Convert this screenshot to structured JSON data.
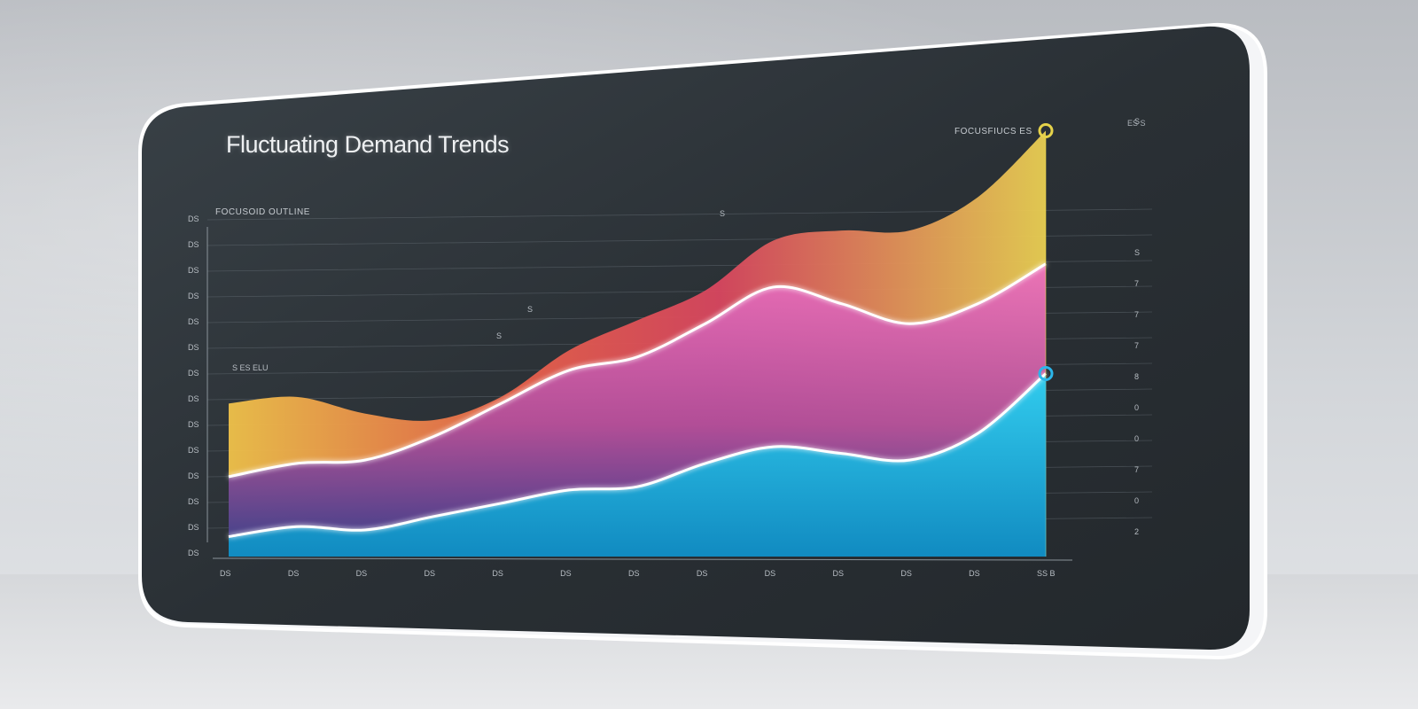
{
  "chart_data": {
    "type": "area",
    "title": "Fluctuating Demand Trends",
    "subtitle_left": "FOCUSOID OUTLINE",
    "subtitle_right": "FOCUSFIUCS ES",
    "corner_label": "ES S",
    "x": [
      0,
      1,
      2,
      3,
      4,
      5,
      6,
      7,
      8,
      9,
      10,
      11,
      12
    ],
    "x_tick_labels": [
      "DS",
      "DS",
      "DS",
      "DS",
      "DS",
      "DS",
      "DS",
      "DS",
      "DS",
      "DS",
      "DS",
      "DS",
      "SS B"
    ],
    "y_tick_labels_left": [
      "DS",
      "DS",
      "DS",
      "DS",
      "DS",
      "DS",
      "DS",
      "DS",
      "DS",
      "DS",
      "DS",
      "DS",
      "DS",
      "DS"
    ],
    "y_tick_labels_right": [
      "S",
      "7",
      "7",
      "7",
      "8",
      "0",
      "0",
      "7",
      "0",
      "2"
    ],
    "ylim": [
      0,
      100
    ],
    "series": [
      {
        "values": [
          46,
          48,
          43,
          41,
          48,
          62,
          71,
          80,
          95,
          98,
          98,
          108,
          128
        ],
        "color": "#e9b84a"
      },
      {
        "values": [
          24,
          28,
          29,
          36,
          46,
          56,
          60,
          70,
          81,
          76,
          70,
          76,
          88
        ],
        "color": "#e56fb4"
      },
      {
        "values": [
          6,
          9,
          8,
          12,
          16,
          20,
          21,
          28,
          33,
          31,
          29,
          37,
          55
        ],
        "color": "#23c3e8"
      }
    ],
    "annotations": [
      "S",
      "S",
      "S",
      "S",
      "S  ES ELU"
    ],
    "colors": {
      "panel": "#2d3338",
      "glow": "#ffffff"
    }
  }
}
